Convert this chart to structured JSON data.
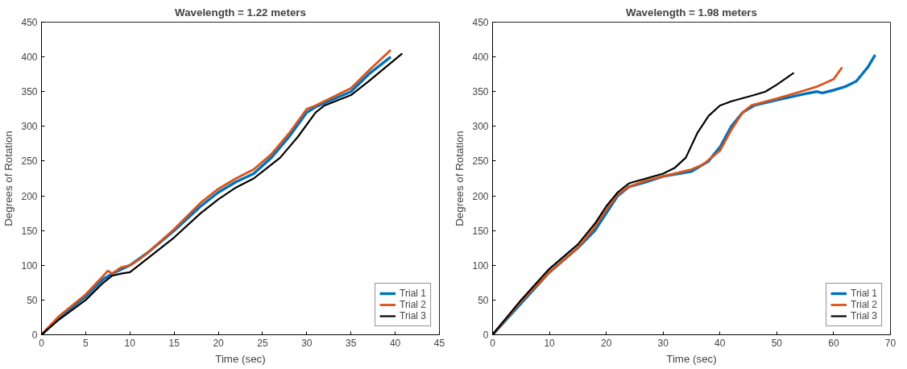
{
  "chart_data": [
    {
      "type": "line",
      "title": "Wavelength = 1.22 meters",
      "xlabel": "Time (sec)",
      "ylabel": "Degrees of Rotation",
      "xlim": [
        0,
        45
      ],
      "ylim": [
        0,
        450
      ],
      "xticks": [
        0,
        5,
        10,
        15,
        20,
        25,
        30,
        35,
        40,
        45
      ],
      "yticks": [
        0,
        50,
        100,
        150,
        200,
        250,
        300,
        350,
        400,
        450
      ],
      "grid": false,
      "legend": "bottom right",
      "series": [
        {
          "name": "Trial 1",
          "color": "#0072bd",
          "x": [
            0,
            2,
            5,
            7,
            8,
            10,
            12,
            15,
            18,
            20,
            22,
            24,
            26,
            28,
            30,
            31,
            35,
            37,
            39.5
          ],
          "values": [
            0,
            25,
            55,
            80,
            88,
            100,
            118,
            150,
            185,
            205,
            220,
            232,
            255,
            285,
            320,
            328,
            350,
            375,
            400
          ]
        },
        {
          "name": "Trial 2",
          "color": "#d95319",
          "x": [
            0,
            2,
            5,
            7,
            7.5,
            8,
            9,
            10,
            11,
            12,
            15,
            18,
            20,
            22,
            24,
            26,
            28,
            30,
            31,
            35,
            37,
            39.5
          ],
          "values": [
            0,
            27,
            58,
            85,
            92,
            88,
            97,
            100,
            108,
            118,
            152,
            190,
            210,
            225,
            238,
            260,
            290,
            325,
            330,
            355,
            380,
            410
          ]
        },
        {
          "name": "Trial 3",
          "color": "#000000",
          "x": [
            0,
            2,
            5,
            7,
            8,
            9,
            10,
            11,
            13,
            15,
            18,
            20,
            22,
            24,
            25,
            27,
            29,
            31,
            32,
            35,
            37,
            40.8
          ],
          "values": [
            0,
            22,
            50,
            75,
            85,
            88,
            90,
            100,
            120,
            140,
            175,
            195,
            212,
            225,
            235,
            255,
            285,
            320,
            330,
            345,
            365,
            405
          ]
        }
      ]
    },
    {
      "type": "line",
      "title": "Wavelength = 1.98 meters",
      "xlabel": "Time (sec)",
      "ylabel": "Degrees of Rotation",
      "xlim": [
        0,
        70
      ],
      "ylim": [
        0,
        450
      ],
      "xticks": [
        0,
        10,
        20,
        30,
        40,
        50,
        60,
        70
      ],
      "yticks": [
        0,
        50,
        100,
        150,
        200,
        250,
        300,
        350,
        400,
        450
      ],
      "grid": false,
      "legend": "bottom right",
      "series": [
        {
          "name": "Trial 1",
          "color": "#0072bd",
          "x": [
            0,
            5,
            10,
            15,
            18,
            20,
            22,
            24,
            27,
            30,
            35,
            38,
            40,
            42,
            44,
            46,
            50,
            55,
            57,
            58,
            60,
            62,
            64,
            66,
            67.3
          ],
          "values": [
            0,
            45,
            90,
            125,
            150,
            175,
            200,
            213,
            220,
            228,
            235,
            250,
            270,
            300,
            320,
            330,
            338,
            347,
            350,
            348,
            352,
            357,
            365,
            385,
            403
          ]
        },
        {
          "name": "Trial 2",
          "color": "#d95319",
          "x": [
            0,
            5,
            10,
            15,
            18,
            20,
            22,
            24,
            27,
            30,
            35,
            37,
            40,
            42,
            44,
            45.5,
            50,
            55,
            57,
            60,
            61.5
          ],
          "values": [
            0,
            48,
            90,
            125,
            155,
            180,
            202,
            213,
            222,
            228,
            238,
            245,
            265,
            295,
            320,
            330,
            340,
            352,
            357,
            368,
            385
          ]
        },
        {
          "name": "Trial 3",
          "color": "#000000",
          "x": [
            0,
            5,
            10,
            15,
            18,
            20,
            22,
            24,
            27,
            30,
            32,
            34,
            36,
            38,
            40,
            42,
            46,
            48,
            50,
            53
          ],
          "values": [
            0,
            50,
            95,
            130,
            160,
            185,
            205,
            218,
            225,
            232,
            240,
            255,
            290,
            315,
            330,
            336,
            345,
            350,
            360,
            377
          ]
        }
      ]
    }
  ]
}
